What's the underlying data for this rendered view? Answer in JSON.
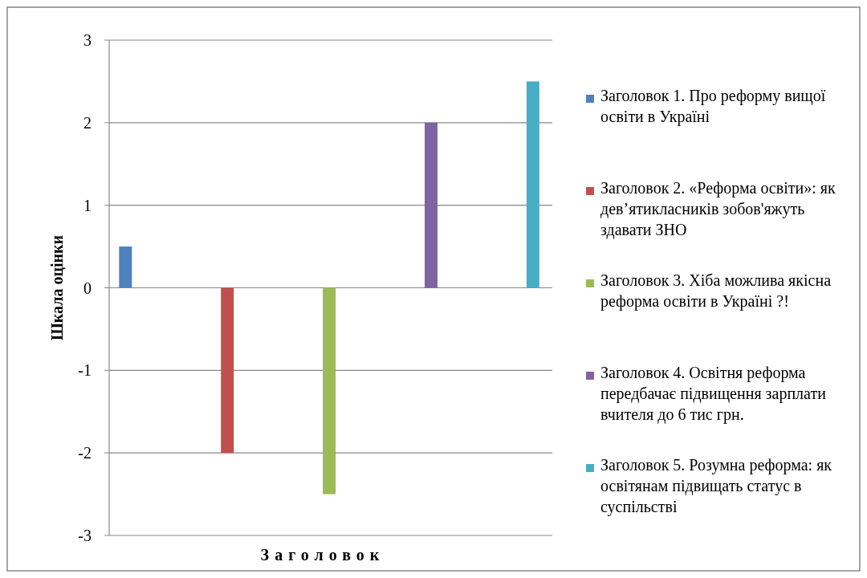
{
  "chart_data": {
    "type": "bar",
    "xlabel": "Заголовок",
    "ylabel": "Шкала оцінки",
    "categories": [
      null
    ],
    "series": [
      {
        "name": "Заголовок 1. Про реформу вищої освіти в Україні",
        "color": "#4f81bd",
        "values": [
          0.5
        ]
      },
      {
        "name": "Заголовок 2. «Реформа освіти»: як дев’ятикласників зобов'яжуть здавати ЗНО",
        "color": "#c0504d",
        "values": [
          -2
        ]
      },
      {
        "name": "Заголовок 3. Хіба можлива якісна реформа освіти в Україні ?!",
        "color": "#9bbb59",
        "values": [
          -2.5
        ]
      },
      {
        "name": "Заголовок 4. Освітня реформа передбачає підвищення зарплати вчителя до 6 тис грн.",
        "color": "#8064a2",
        "values": [
          2
        ]
      },
      {
        "name": "Заголовок 5. Розумна реформа: як освітянам підвищать статус в суспільстві",
        "color": "#4bacc6",
        "values": [
          2.5
        ]
      }
    ],
    "ylim": [
      -3,
      3
    ],
    "yticks": [
      -3,
      -2,
      -1,
      0,
      1,
      2,
      3
    ],
    "grid": "y",
    "legend": "right"
  }
}
